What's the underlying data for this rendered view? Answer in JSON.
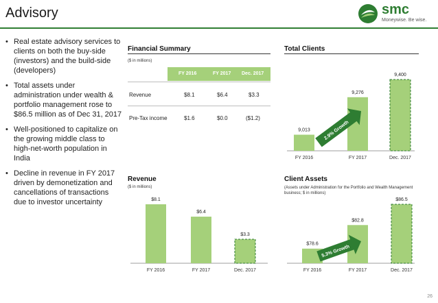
{
  "slide": {
    "title": "Advisory",
    "page_number": "26",
    "accent_color": "#2e7d32",
    "bar_color": "#a5d07a",
    "dark_green": "#2e7d32"
  },
  "logo": {
    "brand": "smc",
    "tagline": "Moneywise. Be wise."
  },
  "bullets": [
    "Real estate advisory services to clients on both the buy-side (investors) and the build-side (developers)",
    "Total assets under administration under wealth & portfolio management rose to $86.5 million as of Dec 31, 2017",
    "Well-positioned to capitalize on the growing middle class to high-net-worth population in India",
    "Decline in revenue in FY 2017 driven by demonetization and cancellations of transactions due to investor uncertainty"
  ],
  "financial_summary": {
    "title": "Financial Summary",
    "unit_note": "($ in millions)",
    "columns": [
      "FY 2016",
      "FY 2017",
      "Dec. 2017"
    ],
    "rows": [
      {
        "label": "Revenue",
        "values": [
          "$8.1",
          "$6.4",
          "$3.3"
        ]
      },
      {
        "label": "Pre-Tax income",
        "values": [
          "$1.6",
          "$0.0",
          "($1.2)"
        ]
      }
    ]
  },
  "chart_data": [
    {
      "id": "total_clients",
      "type": "bar",
      "title": "Total Clients",
      "categories": [
        "FY 2016",
        "FY 2017",
        "Dec. 2017"
      ],
      "values": [
        9013,
        9276,
        9400
      ],
      "value_labels": [
        "9,013",
        "9,276",
        "9,400"
      ],
      "growth_label": "2.9% Growth",
      "last_bar_dashed": true
    },
    {
      "id": "revenue",
      "type": "bar",
      "title": "Revenue",
      "subtitle": "($ in millions)",
      "categories": [
        "FY 2016",
        "FY 2017",
        "Dec. 2017"
      ],
      "values": [
        8.1,
        6.4,
        3.3
      ],
      "value_labels": [
        "$8.1",
        "$6.4",
        "$3.3"
      ],
      "last_bar_dashed": true
    },
    {
      "id": "client_assets",
      "type": "bar",
      "title": "Client Assets",
      "subtitle": "(Assets under Administration for the Portfolio and Wealth Management business; $ in millions)",
      "categories": [
        "FY 2016",
        "FY 2017",
        "Dec. 2017"
      ],
      "values": [
        78.6,
        82.8,
        86.5
      ],
      "value_labels": [
        "$78.6",
        "$82.8",
        "$86.5"
      ],
      "growth_label": "5.3% Growth",
      "last_bar_dashed": true
    }
  ]
}
